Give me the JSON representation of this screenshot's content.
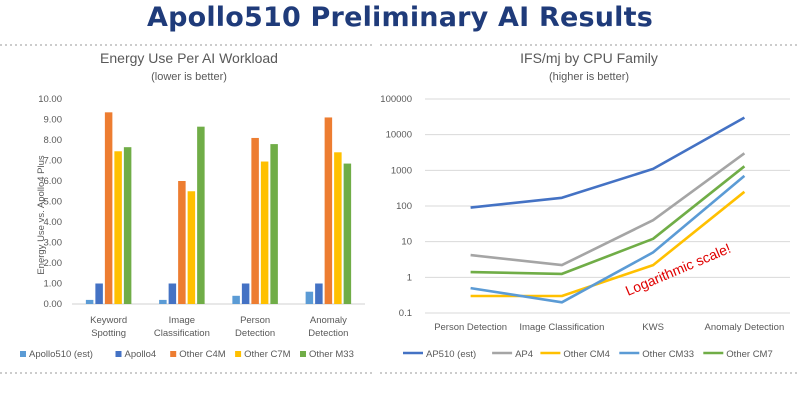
{
  "page": {
    "title": "Apollo510 Preliminary AI Results"
  },
  "chart_data": [
    {
      "type": "bar",
      "title": "Energy Use Per AI Workload",
      "subtitle": "(lower is better)",
      "xlabel": "",
      "ylabel": "Energy Use vs. Apollo4 Plus",
      "ylim": [
        0,
        10
      ],
      "yticks": [
        "0.00",
        "1.00",
        "2.00",
        "3.00",
        "4.00",
        "5.00",
        "6.00",
        "7.00",
        "8.00",
        "9.00",
        "10.00"
      ],
      "grid": false,
      "legend": "bottom",
      "categories": [
        [
          "Keyword",
          "Spotting"
        ],
        [
          "Image",
          "Classification"
        ],
        [
          "Person",
          "Detection"
        ],
        [
          "Anomaly",
          "Detection"
        ]
      ],
      "series": [
        {
          "name": "Apollo510 (est)",
          "color": "#5b9bd5",
          "values": [
            0.2,
            0.2,
            0.4,
            0.6
          ]
        },
        {
          "name": "Apollo4",
          "color": "#4472c4",
          "values": [
            1.0,
            1.0,
            1.0,
            1.0
          ]
        },
        {
          "name": "Other C4M",
          "color": "#ed7d31",
          "values": [
            9.35,
            6.0,
            8.1,
            9.1
          ]
        },
        {
          "name": "Other C7M",
          "color": "#ffc000",
          "values": [
            7.45,
            5.5,
            6.95,
            7.4
          ]
        },
        {
          "name": "Other M33",
          "color": "#70ad47",
          "values": [
            7.65,
            8.65,
            7.8,
            6.85
          ]
        }
      ]
    },
    {
      "type": "line",
      "title": "IFS/mj by CPU Family",
      "subtitle": "(higher is better)",
      "scale": "log",
      "ylim": [
        0.1,
        100000
      ],
      "yticks": [
        "0.1",
        "1",
        "10",
        "100",
        "1000",
        "10000",
        "100000"
      ],
      "grid": true,
      "legend": "bottom",
      "annotation": "Logarithmic scale!",
      "categories": [
        "Person Detection",
        "Image Classification",
        "KWS",
        "Anomaly Detection"
      ],
      "series": [
        {
          "name": "AP510 (est)",
          "color": "#4472c4",
          "values": [
            90,
            170,
            1100,
            30000
          ]
        },
        {
          "name": "AP4",
          "color": "#a5a5a5",
          "values": [
            4.2,
            2.2,
            40,
            3000
          ]
        },
        {
          "name": "Other CM4",
          "color": "#ffc000",
          "values": [
            0.3,
            0.3,
            2.2,
            250
          ]
        },
        {
          "name": "Other CM33",
          "color": "#5b9bd5",
          "values": [
            0.5,
            0.2,
            5,
            700
          ]
        },
        {
          "name": "Other CM7",
          "color": "#70ad47",
          "values": [
            1.4,
            1.25,
            12,
            1300
          ]
        }
      ]
    }
  ]
}
